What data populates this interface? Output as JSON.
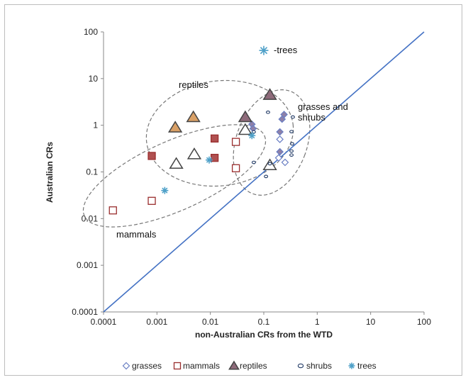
{
  "chart_data": {
    "type": "scatter",
    "title": "",
    "xlabel": "non-Australian CRs from the WTD",
    "ylabel": "Australian CRs",
    "xscale": "log",
    "yscale": "log",
    "xlim": [
      0.0001,
      100
    ],
    "ylim": [
      0.0001,
      100
    ],
    "x_ticks": [
      "0.0001",
      "0.001",
      "0.01",
      "0.1",
      "1",
      "10",
      "100"
    ],
    "y_ticks": [
      "0.0001",
      "0.001",
      "0.01",
      "0.1",
      "1",
      "10",
      "100"
    ],
    "grid": false,
    "legend_position": "bottom",
    "reference_line": {
      "type": "1:1",
      "color": "#4472C4"
    },
    "series": [
      {
        "name": "grasses",
        "marker": "diamond",
        "points": [
          [
            0.06,
            1.05
          ],
          [
            0.063,
            0.85
          ],
          [
            0.2,
            0.72
          ],
          [
            0.22,
            1.35
          ],
          [
            0.24,
            1.7
          ],
          [
            0.2,
            0.27
          ],
          [
            0.2,
            0.5
          ],
          [
            0.19,
            0.2
          ],
          [
            0.25,
            0.16
          ]
        ]
      },
      {
        "name": "mammals",
        "marker": "square",
        "points": [
          [
            0.00015,
            0.015
          ],
          [
            0.0008,
            0.024
          ],
          [
            0.0008,
            0.22
          ],
          [
            0.012,
            0.2
          ],
          [
            0.012,
            0.52
          ],
          [
            0.03,
            0.12
          ],
          [
            0.03,
            0.44
          ]
        ]
      },
      {
        "name": "reptiles",
        "marker": "triangle",
        "points": [
          [
            0.0022,
            0.9
          ],
          [
            0.0048,
            1.5
          ],
          [
            0.045,
            1.5
          ],
          [
            0.13,
            4.5
          ],
          [
            0.0023,
            0.15
          ],
          [
            0.005,
            0.24
          ],
          [
            0.045,
            0.8
          ],
          [
            0.13,
            0.14
          ]
        ]
      },
      {
        "name": "shrubs",
        "marker": "circle",
        "points": [
          [
            0.065,
            0.16
          ],
          [
            0.065,
            0.72
          ],
          [
            0.11,
            0.08
          ],
          [
            0.12,
            1.9
          ],
          [
            0.13,
            0.15
          ],
          [
            0.33,
            0.73
          ],
          [
            0.35,
            1.5
          ],
          [
            0.34,
            0.4
          ],
          [
            0.33,
            0.28
          ],
          [
            0.33,
            0.23
          ]
        ]
      },
      {
        "name": "trees",
        "marker": "asterisk",
        "points": [
          [
            0.0014,
            0.04
          ],
          [
            0.0095,
            0.18
          ],
          [
            0.06,
            0.6
          ],
          [
            0.1,
            40
          ]
        ]
      }
    ],
    "annotations": [
      {
        "text": "-trees"
      },
      {
        "text": "reptiles"
      },
      {
        "text": "grasses and"
      },
      {
        "text": "shrubs"
      },
      {
        "text": "mammals"
      }
    ],
    "colors": {
      "grasses": "#6a7fc4",
      "mammals": "#9a2e2e",
      "reptiles": "#7f3f4f",
      "shrubs": "#1f3864",
      "trees": "#4ea0c8",
      "line": "#4472C4"
    }
  }
}
